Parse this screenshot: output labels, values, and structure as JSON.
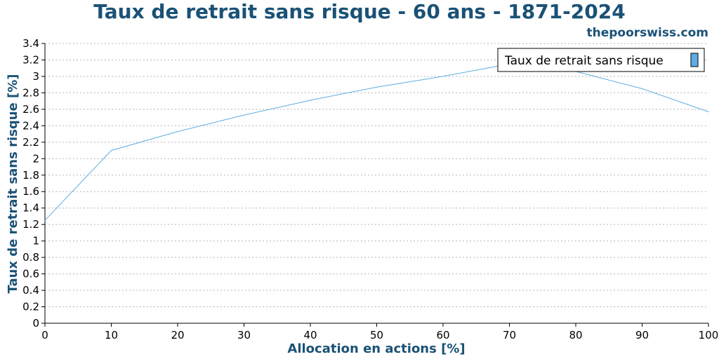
{
  "chart_data": {
    "type": "line",
    "title": "Taux de retrait sans risque - 60 ans - 1871-2024",
    "source": "thepoorswiss.com",
    "xlabel": "Allocation en actions [%]",
    "ylabel": "Taux de retrait sans risque [%]",
    "xlim": [
      0,
      100
    ],
    "ylim": [
      0,
      3.4
    ],
    "x_ticks": [
      "0",
      "10",
      "20",
      "30",
      "40",
      "50",
      "60",
      "70",
      "80",
      "90",
      "100"
    ],
    "y_ticks": [
      "0",
      "0.2",
      "0.4",
      "0.6",
      "0.8",
      "1",
      "1.2",
      "1.4",
      "1.6",
      "1.8",
      "2",
      "2.2",
      "2.4",
      "2.6",
      "2.8",
      "3",
      "3.2",
      "3.4"
    ],
    "grid": "horizontal dotted",
    "legend_position": "top-right",
    "series": [
      {
        "name": "Taux de retrait sans risque",
        "color": "#5dade2",
        "x": [
          0,
          10,
          20,
          30,
          40,
          50,
          60,
          70,
          80,
          90,
          100
        ],
        "y": [
          1.25,
          2.1,
          2.33,
          2.53,
          2.71,
          2.87,
          3.0,
          3.15,
          3.06,
          2.85,
          2.57
        ]
      }
    ]
  }
}
